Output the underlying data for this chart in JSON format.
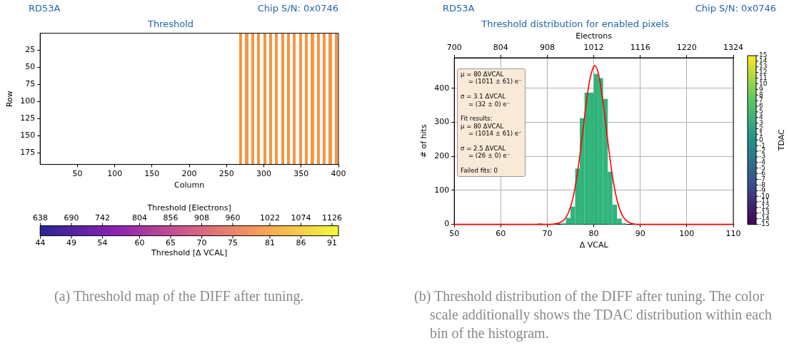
{
  "chart_data": [
    {
      "type": "heatmap",
      "title": "Threshold",
      "xlabel": "Column",
      "ylabel": "Row",
      "x": [
        269,
        273,
        277,
        281,
        285,
        289,
        293,
        297,
        301,
        305,
        309,
        313,
        317,
        321,
        325,
        329,
        333,
        337,
        341,
        345,
        349,
        353,
        357,
        361,
        365,
        369,
        373,
        377,
        381,
        385,
        389,
        393,
        397
      ],
      "cells": [
        [
          80,
          null,
          80,
          null,
          80,
          null,
          80,
          null,
          80,
          null,
          80,
          null,
          80,
          null,
          80,
          null,
          80,
          null,
          80,
          null,
          80,
          null,
          80,
          null,
          80,
          null,
          80,
          null,
          80,
          null,
          80,
          null,
          80
        ]
      ],
      "xlim": [
        0,
        400
      ],
      "xticks": [
        50,
        100,
        150,
        200,
        250,
        300,
        350,
        400
      ],
      "ylim": [
        192,
        0
      ],
      "yticks": [
        25,
        50,
        75,
        100,
        125,
        150,
        175
      ],
      "clim": [
        44,
        92
      ],
      "clabel": "Threshold [Δ VCAL]",
      "cticks": [
        {
          "value": 44.04,
          "label": "44"
        },
        {
          "value": 49.04,
          "label": "49"
        },
        {
          "value": 54.04,
          "label": "54"
        },
        {
          "value": 60,
          "label": "60"
        },
        {
          "value": 65,
          "label": "65"
        },
        {
          "value": 70,
          "label": "70"
        },
        {
          "value": 75,
          "label": "75"
        },
        {
          "value": 80.96,
          "label": "81"
        },
        {
          "value": 85.96,
          "label": "86"
        },
        {
          "value": 90.96,
          "label": "91"
        }
      ],
      "annotations": [
        "RD53A",
        "Chip S/N: 0x0746",
        "(a) Threshold map of the DIFF after tuning.",
        "Threshold [Electrons]",
        "638",
        "690",
        "742",
        "804",
        "856",
        "908",
        "960",
        "1022",
        "1074",
        "1126"
      ]
    },
    {
      "type": "histogram",
      "title": "Threshold distribution for enabled pixels",
      "xlabel": "Δ VCAL",
      "ylabel": "# of hits",
      "x2label": "Electrons",
      "bins": [
        68,
        69,
        70,
        71,
        72,
        73,
        74,
        75,
        76,
        77,
        78,
        79,
        80,
        81,
        82,
        83,
        84,
        85,
        86,
        87
      ],
      "series": [
        {
          "type": "histogram",
          "color": "#2fb47c",
          "values": [
            3,
            0,
            0,
            0,
            0,
            3,
            19,
            52,
            164,
            312,
            387,
            388,
            443,
            430,
            369,
            155,
            58,
            17,
            3
          ]
        },
        {
          "type": "line",
          "color": "#ff0000",
          "x": [
            50,
            70,
            72,
            73,
            74,
            75,
            76,
            77,
            78,
            79,
            80,
            80.2,
            81,
            82,
            83,
            84,
            85,
            86,
            87,
            88,
            90,
            110
          ],
          "values": [
            0,
            0,
            2,
            7,
            20,
            51,
            110,
            202,
            314,
            415,
            465,
            467,
            443,
            358,
            246,
            143,
            71,
            30,
            11,
            3,
            0,
            0
          ]
        }
      ],
      "xlim": [
        50,
        110
      ],
      "xticks": [
        50,
        60,
        70,
        80,
        90,
        100,
        110
      ],
      "x2lim": [
        700,
        1324
      ],
      "x2ticks": [
        700,
        804,
        908,
        1012,
        1116,
        1220,
        1324
      ],
      "ylim": [
        0,
        490
      ],
      "yticks": [
        0,
        100,
        200,
        300,
        400
      ],
      "grid": true,
      "marker": "none",
      "clim": [
        -15,
        15
      ],
      "cticks": [
        -15,
        -14,
        -13,
        -12,
        -11,
        -10,
        -9,
        -8,
        -7,
        -6,
        -5,
        -4,
        -3,
        -2,
        -1,
        0,
        1,
        2,
        3,
        4,
        5,
        6,
        7,
        8,
        9,
        10,
        11,
        12,
        13,
        14,
        15
      ],
      "clabel": "TDAC",
      "annotations": [
        "RD53A",
        "Chip S/N: 0x0746",
        "μ = 80 ΔVCAL\n    = (1011 ± 61) e⁻\n\nσ = 3.1 ΔVCAL\n    = (32 ± 0) e⁻\n\nFit results:\nμ = 80 ΔVCAL\n    = (1014 ± 61) e⁻\n\nσ = 2.5 ΔVCAL\n    = (26 ± 0) e⁻\n\nFailed fits: 0",
        "(b) Threshold distribution of the DIFF after tuning. The color scale additionally shows the TDAC distribution within each bin of the histogram."
      ]
    }
  ]
}
